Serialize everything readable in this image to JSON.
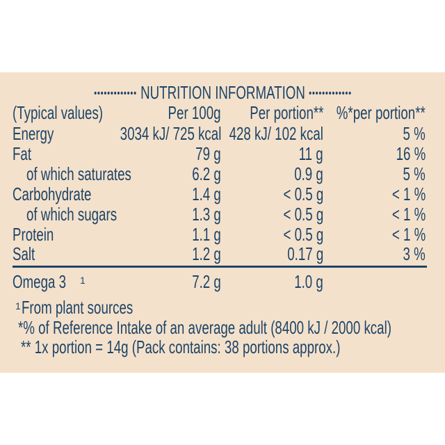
{
  "title": "NUTRITION INFORMATION",
  "title_dots": "•••••••••••••",
  "headers": [
    "(Typical values)",
    "Per 100g",
    "Per portion**",
    "%*per portion**"
  ],
  "rows": [
    {
      "label": "Energy",
      "per100g": "3034 kJ/ 725 kcal",
      "perPortion": "428 kJ/ 102 kcal",
      "ri": "5 %",
      "sub": false
    },
    {
      "label": "Fat",
      "per100g": "79 g",
      "perPortion": "11 g",
      "ri": "16 %",
      "sub": false
    },
    {
      "label": "of which saturates",
      "per100g": "6.2 g",
      "perPortion": "0.9 g",
      "ri": "5 %",
      "sub": true
    },
    {
      "label": "Carbohydrate",
      "per100g": "1.4 g",
      "perPortion": "< 0.5 g",
      "ri": "< 1 %",
      "sub": false
    },
    {
      "label": "of which sugars",
      "per100g": "1.3 g",
      "perPortion": "< 0.5 g",
      "ri": "< 1 %",
      "sub": true
    },
    {
      "label": "Protein",
      "per100g": "1.1 g",
      "perPortion": "< 0.5 g",
      "ri": "< 1 %",
      "sub": false
    },
    {
      "label": "Salt",
      "per100g": "1.2 g",
      "perPortion": "0.17 g",
      "ri": "3 %",
      "sub": false
    }
  ],
  "omega": {
    "label": "Omega 3",
    "sup": "1",
    "per100g": "7.2 g",
    "perPortion": "1.0 g"
  },
  "footnotes": {
    "f1_sup": "1",
    "f1": "From plant sources",
    "f2": "*% of Reference Intake of an average adult (8400 kJ / 2000 kcal)",
    "f3": "** 1x portion = 14g (Pack contains: 38 portions approx.)"
  },
  "colors": {
    "text": "#1d4466",
    "background": "#f4e1cc"
  }
}
